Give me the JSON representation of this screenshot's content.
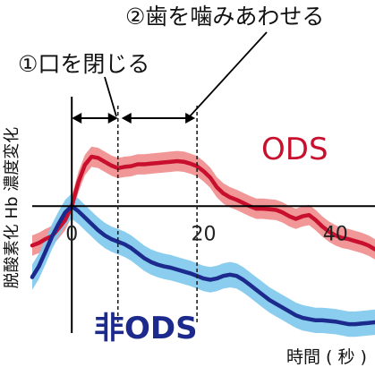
{
  "chart_data": {
    "type": "line",
    "ylabel": "脱酸素化 Hb 濃度変化",
    "xlabel": "時間 ( 秒 )",
    "x_ticks": [
      0,
      20,
      40
    ],
    "xlim": [
      -6,
      46
    ],
    "ylim": [
      -2.0,
      1.5
    ],
    "grid": false,
    "annotations": {
      "phase1_label": "①口を閉じる",
      "phase1_range": [
        0,
        7
      ],
      "phase2_label": "②歯を噛みあわせる",
      "phase2_range": [
        7,
        19
      ]
    },
    "series": [
      {
        "name": "ODS",
        "color": "#c8102e",
        "band_color": "#f08c8c",
        "x": [
          -6,
          -5,
          -4,
          -3,
          -2,
          -1,
          0,
          1,
          2,
          3,
          4,
          5,
          6,
          7,
          8,
          9,
          10,
          11,
          12,
          13,
          14,
          15,
          16,
          17,
          18,
          19,
          20,
          21,
          22,
          23,
          24,
          25,
          26,
          27,
          28,
          29,
          30,
          31,
          32,
          33,
          34,
          35,
          36,
          37,
          38,
          39,
          40,
          41,
          42,
          43,
          44,
          45,
          46
        ],
        "values": [
          -0.62,
          -0.58,
          -0.52,
          -0.47,
          -0.35,
          -0.22,
          0.0,
          0.38,
          0.65,
          0.78,
          0.76,
          0.7,
          0.64,
          0.6,
          0.62,
          0.63,
          0.66,
          0.66,
          0.67,
          0.68,
          0.69,
          0.7,
          0.71,
          0.7,
          0.67,
          0.63,
          0.55,
          0.45,
          0.3,
          0.2,
          0.14,
          0.1,
          0.05,
          0.0,
          -0.04,
          -0.04,
          -0.05,
          -0.06,
          -0.1,
          -0.16,
          -0.2,
          -0.16,
          -0.14,
          -0.22,
          -0.32,
          -0.4,
          -0.46,
          -0.5,
          -0.52,
          -0.55,
          -0.58,
          -0.62,
          -0.68
        ],
        "band_halfwidth": 0.16
      },
      {
        "name": "非ODS",
        "color": "#1b2a8c",
        "band_color": "#7ec8ec",
        "x": [
          -6,
          -5,
          -4,
          -3,
          -2,
          -1,
          0,
          1,
          2,
          3,
          4,
          5,
          6,
          7,
          8,
          9,
          10,
          11,
          12,
          13,
          14,
          15,
          16,
          17,
          18,
          19,
          20,
          21,
          22,
          23,
          24,
          25,
          26,
          27,
          28,
          29,
          30,
          31,
          32,
          33,
          34,
          35,
          36,
          37,
          38,
          39,
          40,
          41,
          42,
          43,
          44,
          45,
          46
        ],
        "values": [
          -1.12,
          -0.95,
          -0.72,
          -0.48,
          -0.28,
          -0.1,
          0.0,
          -0.08,
          -0.18,
          -0.28,
          -0.38,
          -0.46,
          -0.52,
          -0.56,
          -0.6,
          -0.66,
          -0.74,
          -0.82,
          -0.88,
          -0.92,
          -0.95,
          -0.97,
          -1.0,
          -1.03,
          -1.06,
          -1.1,
          -1.14,
          -1.16,
          -1.14,
          -1.1,
          -1.08,
          -1.1,
          -1.16,
          -1.24,
          -1.32,
          -1.4,
          -1.48,
          -1.54,
          -1.6,
          -1.66,
          -1.72,
          -1.76,
          -1.78,
          -1.8,
          -1.8,
          -1.81,
          -1.82,
          -1.84,
          -1.86,
          -1.86,
          -1.85,
          -1.84,
          -1.83
        ],
        "band_halfwidth": 0.2
      }
    ]
  }
}
